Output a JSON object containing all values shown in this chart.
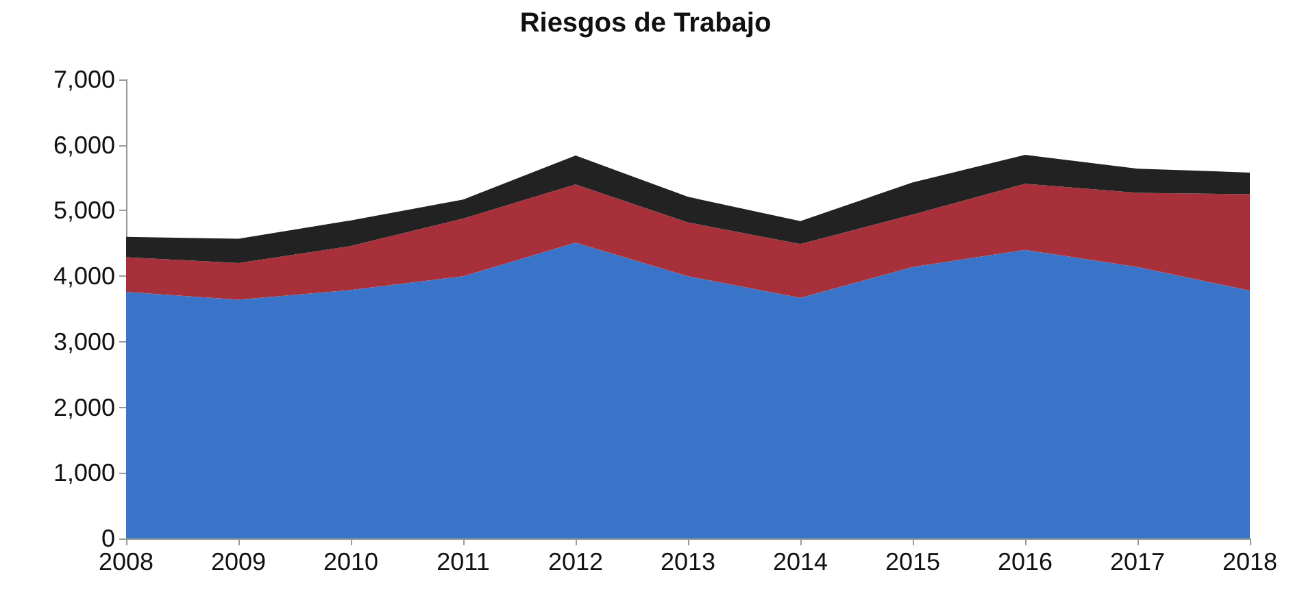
{
  "chart_data": {
    "type": "area",
    "title": "Riesgos de Trabajo",
    "stacked": true,
    "categories": [
      "2008",
      "2009",
      "2010",
      "2011",
      "2012",
      "2013",
      "2014",
      "2015",
      "2016",
      "2017",
      "2018"
    ],
    "series": [
      {
        "color": "#3a74c8",
        "values": [
          3760,
          3640,
          3790,
          4000,
          4510,
          4000,
          3670,
          4140,
          4400,
          4140,
          3780
        ]
      },
      {
        "color": "#a8303a",
        "values": [
          530,
          560,
          670,
          880,
          890,
          820,
          820,
          800,
          1010,
          1130,
          1470
        ]
      },
      {
        "color": "#222222",
        "values": [
          310,
          370,
          390,
          290,
          440,
          390,
          350,
          490,
          440,
          370,
          330
        ]
      }
    ],
    "ylim": [
      0,
      7000
    ],
    "yticks": [
      0,
      {
        "value": 1000,
        "label": "1,000"
      },
      {
        "value": 2000,
        "label": "2,000"
      },
      {
        "value": 3000,
        "label": "3,000"
      },
      {
        "value": 4000,
        "label": "4,000"
      },
      {
        "value": 5000,
        "label": "5,000"
      },
      {
        "value": 6000,
        "label": "6,000"
      },
      {
        "value": 7000,
        "label": "7,000"
      }
    ],
    "grid": false
  }
}
